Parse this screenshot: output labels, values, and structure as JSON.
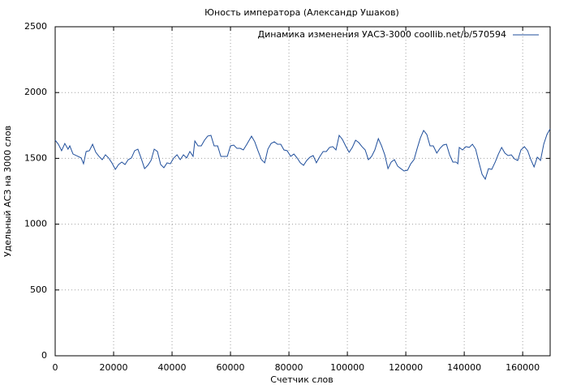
{
  "chart_data": {
    "type": "line",
    "title": "Юность императора (Александр Ушаков)",
    "xlabel": "Счетчик слов",
    "ylabel": "Удельный АСЗ на 3000 слов",
    "legend": "top-right",
    "grid": true,
    "xlim": [
      0,
      169400
    ],
    "ylim": [
      0,
      2500
    ],
    "xticks": [
      0,
      20000,
      40000,
      60000,
      80000,
      100000,
      120000,
      140000,
      160000
    ],
    "yticks": [
      0,
      500,
      1000,
      1500,
      2000,
      2500
    ],
    "x": [
      0,
      1100,
      2200,
      3300,
      4400,
      5000,
      6100,
      7800,
      8900,
      9700,
      10600,
      11700,
      12800,
      13900,
      15000,
      16100,
      17200,
      18300,
      19400,
      20600,
      21700,
      22800,
      23900,
      25000,
      26100,
      27200,
      28300,
      29400,
      30600,
      31700,
      32800,
      33900,
      35000,
      36100,
      37200,
      38300,
      39400,
      40600,
      41700,
      42800,
      43900,
      45000,
      46100,
      47200,
      47800,
      48900,
      50000,
      51100,
      52200,
      53300,
      54400,
      55600,
      56700,
      57800,
      58900,
      60000,
      61100,
      62200,
      63300,
      64400,
      65600,
      67200,
      68300,
      69400,
      70600,
      71700,
      72800,
      73900,
      75000,
      76100,
      77200,
      78300,
      79400,
      80600,
      81700,
      82800,
      83900,
      85000,
      86100,
      87200,
      88300,
      89400,
      90600,
      91700,
      92800,
      93900,
      95000,
      96100,
      97200,
      98300,
      99400,
      100600,
      101700,
      102800,
      103900,
      105000,
      106100,
      107200,
      108300,
      109400,
      110600,
      111700,
      112800,
      113900,
      115000,
      116100,
      117200,
      118300,
      119400,
      120600,
      121700,
      122800,
      123900,
      125000,
      126100,
      127200,
      128300,
      129400,
      130600,
      131700,
      132800,
      133900,
      135000,
      136100,
      137200,
      137800,
      138300,
      139400,
      140600,
      141700,
      142800,
      143900,
      145000,
      146100,
      147200,
      148300,
      149400,
      150600,
      151700,
      152800,
      153900,
      155000,
      156100,
      157200,
      158300,
      159400,
      160600,
      161700,
      162800,
      163900,
      165000,
      166100,
      167200,
      168300,
      169400
    ],
    "series": [
      {
        "name": "Динамика изменения УАСЗ-3000 coollib.net/b/570594",
        "color": "#1f4e9b",
        "values": [
          1638,
          1607,
          1558,
          1613,
          1570,
          1595,
          1533,
          1515,
          1503,
          1459,
          1552,
          1558,
          1607,
          1546,
          1515,
          1490,
          1527,
          1503,
          1466,
          1416,
          1453,
          1472,
          1453,
          1490,
          1503,
          1558,
          1570,
          1503,
          1422,
          1447,
          1484,
          1570,
          1552,
          1453,
          1429,
          1466,
          1459,
          1503,
          1527,
          1490,
          1527,
          1503,
          1552,
          1515,
          1632,
          1595,
          1595,
          1638,
          1669,
          1675,
          1595,
          1595,
          1515,
          1515,
          1515,
          1595,
          1601,
          1576,
          1576,
          1564,
          1607,
          1669,
          1626,
          1558,
          1490,
          1466,
          1570,
          1613,
          1626,
          1607,
          1607,
          1564,
          1558,
          1515,
          1533,
          1503,
          1466,
          1447,
          1484,
          1509,
          1521,
          1466,
          1515,
          1552,
          1552,
          1583,
          1589,
          1564,
          1675,
          1644,
          1595,
          1546,
          1583,
          1638,
          1620,
          1589,
          1564,
          1490,
          1515,
          1564,
          1650,
          1595,
          1527,
          1422,
          1472,
          1490,
          1441,
          1422,
          1404,
          1410,
          1459,
          1490,
          1576,
          1656,
          1712,
          1681,
          1595,
          1595,
          1540,
          1576,
          1601,
          1607,
          1527,
          1472,
          1472,
          1459,
          1583,
          1564,
          1589,
          1583,
          1607,
          1570,
          1472,
          1379,
          1342,
          1422,
          1416,
          1472,
          1533,
          1583,
          1540,
          1521,
          1527,
          1496,
          1484,
          1564,
          1589,
          1558,
          1490,
          1435,
          1509,
          1484,
          1607,
          1681,
          1724
        ]
      }
    ]
  }
}
